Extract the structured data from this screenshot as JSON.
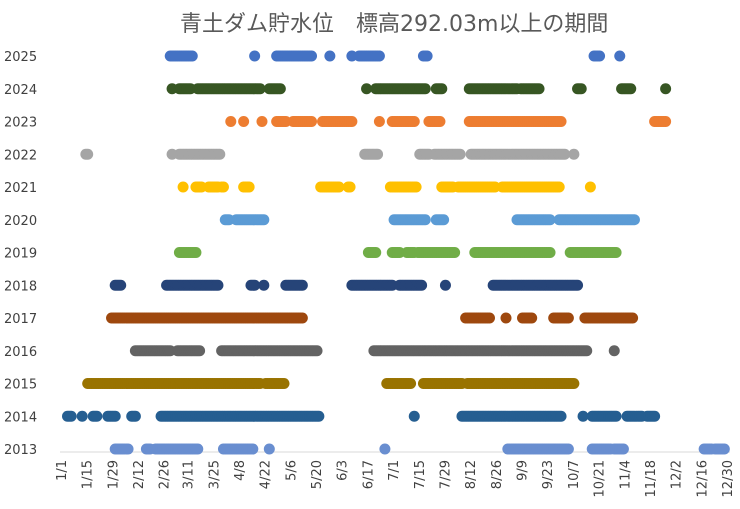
{
  "chart_data": {
    "type": "scatter",
    "title": "青土ダム貯水位　標高292.03m以上の期間",
    "x_ticks": [
      "1/1",
      "1/15",
      "1/29",
      "2/12",
      "2/26",
      "3/11",
      "3/25",
      "4/8",
      "4/22",
      "5/6",
      "5/20",
      "6/3",
      "6/17",
      "7/1",
      "7/15",
      "7/29",
      "8/12",
      "8/26",
      "9/9",
      "9/23",
      "10/7",
      "10/21",
      "11/4",
      "11/18",
      "12/2",
      "12/16",
      "12/30"
    ],
    "y_ticks": [
      "2025",
      "2024",
      "2023",
      "2022",
      "2021",
      "2020",
      "2019",
      "2018",
      "2017",
      "2016",
      "2015",
      "2014",
      "2013"
    ],
    "xlim": [
      "1/1",
      "12/30"
    ],
    "grid": false,
    "series": [
      {
        "year": "2025",
        "color": "#4472C4",
        "ranges": [
          [
            "3/1",
            "3/13"
          ],
          [
            "4/16",
            "4/16"
          ],
          [
            "4/28",
            "5/17"
          ],
          [
            "5/27",
            "5/27"
          ],
          [
            "6/8",
            "6/8"
          ],
          [
            "6/12",
            "6/23"
          ],
          [
            "7/17",
            "7/19"
          ],
          [
            "10/18",
            "10/21"
          ],
          [
            "11/1",
            "11/1"
          ]
        ]
      },
      {
        "year": "2024",
        "color": "#375623",
        "ranges": [
          [
            "3/2",
            "3/2"
          ],
          [
            "3/6",
            "3/12"
          ],
          [
            "3/16",
            "4/19"
          ],
          [
            "4/24",
            "4/30"
          ],
          [
            "6/16",
            "6/16"
          ],
          [
            "6/21",
            "7/18"
          ],
          [
            "7/24",
            "7/27"
          ],
          [
            "8/11",
            "9/6"
          ],
          [
            "9/8",
            "9/18"
          ],
          [
            "10/9",
            "10/11"
          ],
          [
            "11/2",
            "11/7"
          ],
          [
            "11/26",
            "11/26"
          ]
        ]
      },
      {
        "year": "2023",
        "color": "#ED7D31",
        "ranges": [
          [
            "4/3",
            "4/3"
          ],
          [
            "4/10",
            "4/10"
          ],
          [
            "4/20",
            "4/20"
          ],
          [
            "4/28",
            "5/3"
          ],
          [
            "5/7",
            "5/17"
          ],
          [
            "5/23",
            "6/8"
          ],
          [
            "6/23",
            "6/23"
          ],
          [
            "6/30",
            "7/12"
          ],
          [
            "7/20",
            "7/26"
          ],
          [
            "8/11",
            "9/30"
          ],
          [
            "11/20",
            "11/26"
          ]
        ]
      },
      {
        "year": "2022",
        "color": "#A5A5A5",
        "ranges": [
          [
            "1/14",
            "1/15"
          ],
          [
            "3/2",
            "3/2"
          ],
          [
            "3/6",
            "3/28"
          ],
          [
            "6/15",
            "6/22"
          ],
          [
            "7/15",
            "7/20"
          ],
          [
            "7/23",
            "8/6"
          ],
          [
            "8/12",
            "10/2"
          ],
          [
            "10/7",
            "10/7"
          ]
        ]
      },
      {
        "year": "2021",
        "color": "#FFC000",
        "ranges": [
          [
            "3/8",
            "3/8"
          ],
          [
            "3/15",
            "3/18"
          ],
          [
            "3/22",
            "3/27"
          ],
          [
            "3/29",
            "3/30"
          ],
          [
            "4/10",
            "4/13"
          ],
          [
            "5/22",
            "6/1"
          ],
          [
            "6/6",
            "6/7"
          ],
          [
            "6/29",
            "7/13"
          ],
          [
            "7/27",
            "8/2"
          ],
          [
            "8/5",
            "8/25"
          ],
          [
            "8/29",
            "9/29"
          ],
          [
            "10/16",
            "10/16"
          ]
        ]
      },
      {
        "year": "2020",
        "color": "#5B9BD5",
        "ranges": [
          [
            "3/31",
            "4/2"
          ],
          [
            "4/6",
            "4/21"
          ],
          [
            "7/1",
            "7/18"
          ],
          [
            "7/24",
            "7/28"
          ],
          [
            "9/6",
            "9/24"
          ],
          [
            "9/29",
            "11/9"
          ]
        ]
      },
      {
        "year": "2019",
        "color": "#70AD47",
        "ranges": [
          [
            "3/6",
            "3/15"
          ],
          [
            "6/17",
            "6/21"
          ],
          [
            "6/30",
            "7/4"
          ],
          [
            "7/8",
            "7/12"
          ],
          [
            "7/14",
            "8/3"
          ],
          [
            "8/14",
            "9/24"
          ],
          [
            "10/5",
            "10/30"
          ]
        ]
      },
      {
        "year": "2018",
        "color": "#264478",
        "ranges": [
          [
            "1/30",
            "2/2"
          ],
          [
            "2/27",
            "3/27"
          ],
          [
            "4/14",
            "4/16"
          ],
          [
            "4/21",
            "4/21"
          ],
          [
            "5/3",
            "5/12"
          ],
          [
            "6/8",
            "6/30"
          ],
          [
            "7/4",
            "7/16"
          ],
          [
            "7/29",
            "7/29"
          ],
          [
            "8/24",
            "10/9"
          ]
        ]
      },
      {
        "year": "2017",
        "color": "#9E480E",
        "ranges": [
          [
            "1/28",
            "4/26"
          ],
          [
            "4/27",
            "5/12"
          ],
          [
            "8/9",
            "8/22"
          ],
          [
            "8/31",
            "8/31"
          ],
          [
            "9/9",
            "9/14"
          ],
          [
            "9/26",
            "10/4"
          ],
          [
            "10/13",
            "11/8"
          ]
        ]
      },
      {
        "year": "2016",
        "color": "#636363",
        "ranges": [
          [
            "2/10",
            "3/1"
          ],
          [
            "3/5",
            "3/17"
          ],
          [
            "3/29",
            "5/20"
          ],
          [
            "6/20",
            "10/14"
          ],
          [
            "10/29",
            "10/29"
          ]
        ]
      },
      {
        "year": "2015",
        "color": "#997300",
        "ranges": [
          [
            "1/15",
            "4/19"
          ],
          [
            "4/22",
            "5/2"
          ],
          [
            "6/27",
            "7/10"
          ],
          [
            "7/17",
            "8/7"
          ],
          [
            "8/10",
            "10/7"
          ]
        ]
      },
      {
        "year": "2014",
        "color": "#255E91",
        "ranges": [
          [
            "1/4",
            "1/6"
          ],
          [
            "1/12",
            "1/12"
          ],
          [
            "1/18",
            "1/20"
          ],
          [
            "1/26",
            "1/30"
          ],
          [
            "2/8",
            "2/10"
          ],
          [
            "2/24",
            "5/21"
          ],
          [
            "7/12",
            "7/12"
          ],
          [
            "8/7",
            "9/30"
          ],
          [
            "10/12",
            "10/12"
          ],
          [
            "10/17",
            "10/30"
          ],
          [
            "11/5",
            "11/13"
          ],
          [
            "11/16",
            "11/20"
          ]
        ]
      },
      {
        "year": "2013",
        "color": "#698ED0",
        "ranges": [
          [
            "1/30",
            "2/6"
          ],
          [
            "2/16",
            "2/18"
          ],
          [
            "2/21",
            "3/16"
          ],
          [
            "3/30",
            "4/15"
          ],
          [
            "4/24",
            "4/24"
          ],
          [
            "6/26",
            "6/26"
          ],
          [
            "9/1",
            "10/4"
          ],
          [
            "10/17",
            "10/27"
          ],
          [
            "10/29",
            "11/3"
          ],
          [
            "12/17",
            "12/21"
          ],
          [
            "12/23",
            "12/28"
          ]
        ]
      }
    ]
  }
}
